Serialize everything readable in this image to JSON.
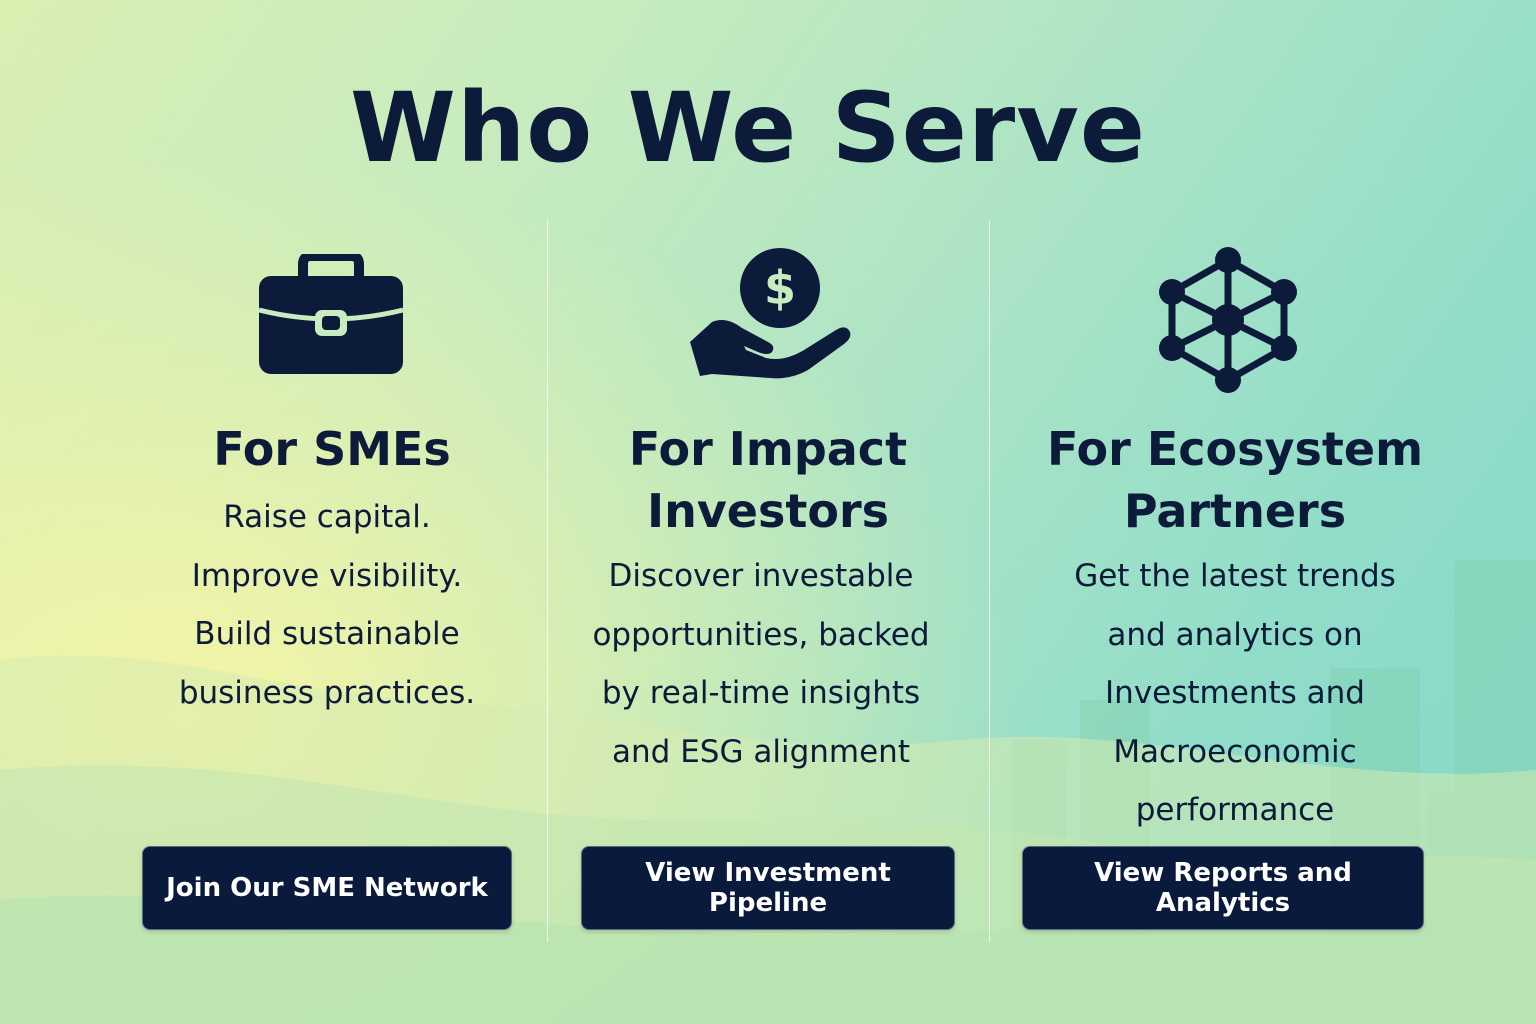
{
  "header": {
    "title": "Who We Serve"
  },
  "colors": {
    "navy": "#0d1b3a",
    "button_bg": "#0a1a3c",
    "button_text": "#ffffff",
    "bg_gradient_start": "#d9efb2",
    "bg_gradient_end": "#82d8ca"
  },
  "columns": [
    {
      "icon": "briefcase-icon",
      "heading": "For SMEs",
      "description": "Raise capital.\nImprove visibility.\nBuild sustainable\nbusiness practices.",
      "button_label": "Join Our SME Network"
    },
    {
      "icon": "hand-dollar-icon",
      "heading": "For Impact\nInvestors",
      "description": "Discover investable\nopportunities, backed\nby real-time insights\nand ESG alignment",
      "button_label": "View Investment Pipeline"
    },
    {
      "icon": "network-icon",
      "heading": "For Ecosystem\nPartners",
      "description": "Get the latest trends\nand analytics on\nInvestments and\nMacroeconomic\nperformance",
      "button_label": "View Reports and Analytics"
    }
  ]
}
